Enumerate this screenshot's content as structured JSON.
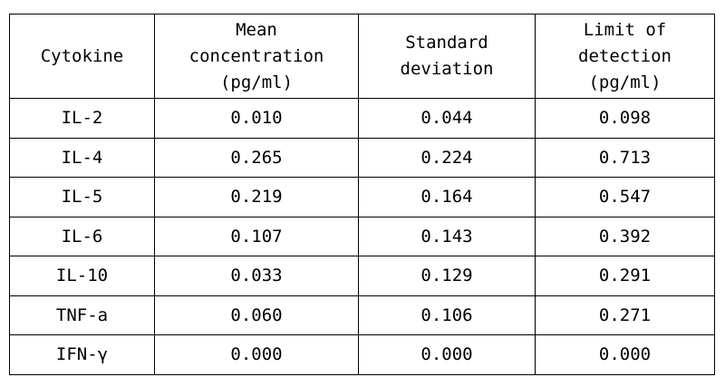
{
  "table": {
    "header": [
      [
        "Cytokine"
      ],
      [
        "Mean",
        "concentration",
        "(pg/ml)"
      ],
      [
        "Standard",
        "deviation"
      ],
      [
        "Limit of",
        "detection",
        "(pg/ml)"
      ]
    ],
    "rows": [
      [
        "IL-2",
        "0.010",
        "0.044",
        "0.098"
      ],
      [
        "IL-4",
        "0.265",
        "0.224",
        "0.713"
      ],
      [
        "IL-5",
        "0.219",
        "0.164",
        "0.547"
      ],
      [
        "IL-6",
        "0.107",
        "0.143",
        "0.392"
      ],
      [
        "IL-10",
        "0.033",
        "0.129",
        "0.291"
      ],
      [
        "TNF-a",
        "0.060",
        "0.106",
        "0.271"
      ],
      [
        "IFN-γ",
        "0.000",
        "0.000",
        "0.000"
      ]
    ]
  }
}
